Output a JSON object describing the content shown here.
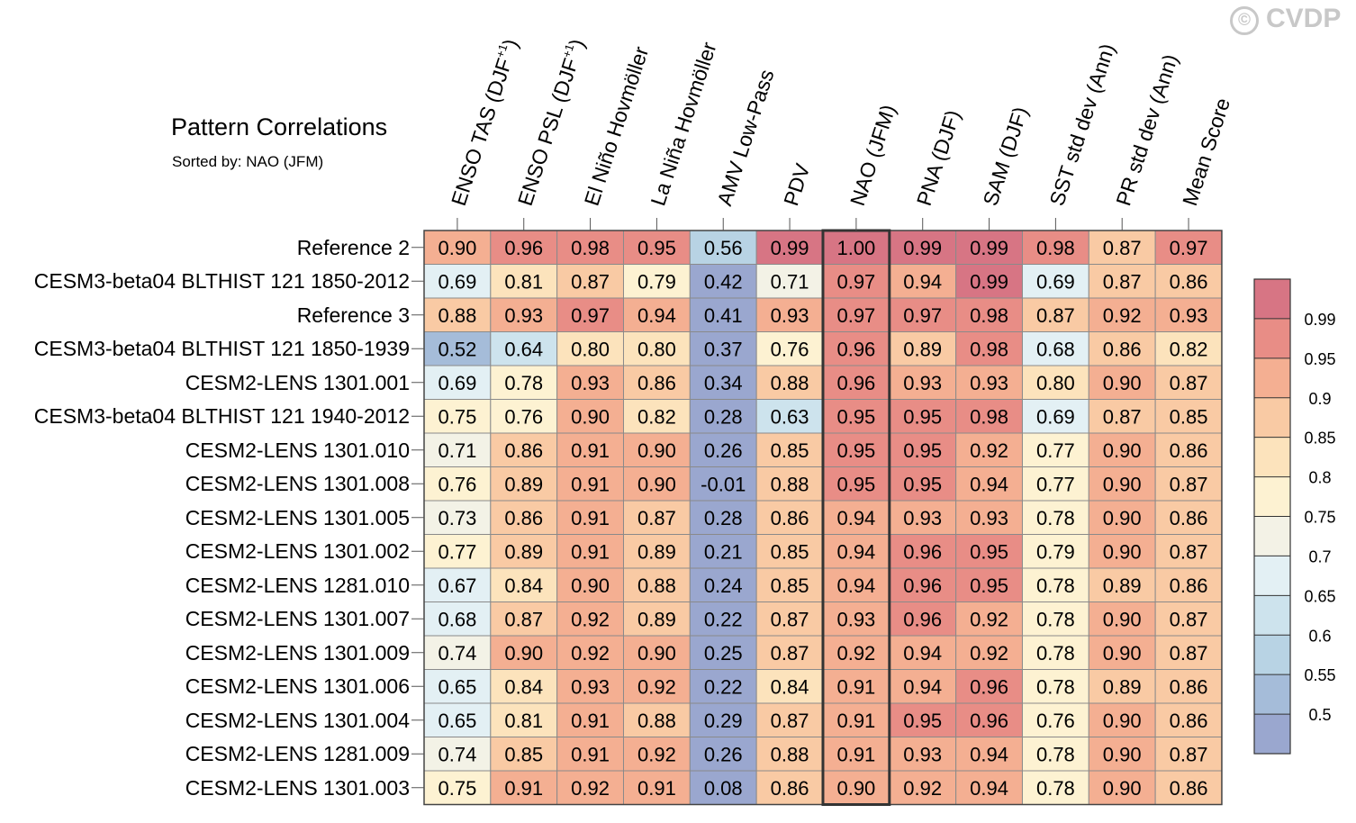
{
  "chart_data": {
    "type": "heatmap",
    "title": "Pattern Correlations",
    "subtitle": "Sorted by: NAO (JFM)",
    "watermark": "CVDP",
    "watermark_symbol": "©",
    "highlighted_column": "NAO (JFM)",
    "columns": [
      {
        "label": "ENSO TAS (DJF",
        "sup": "+1",
        "tail": ")"
      },
      {
        "label": "ENSO PSL (DJF",
        "sup": "+1",
        "tail": ")"
      },
      {
        "label": "El Niño Hovmöller",
        "sup": "",
        "tail": ""
      },
      {
        "label": "La Niña Hovmöller",
        "sup": "",
        "tail": ""
      },
      {
        "label": "AMV Low-Pass",
        "sup": "",
        "tail": ""
      },
      {
        "label": "PDV",
        "sup": "",
        "tail": ""
      },
      {
        "label": "NAO (JFM)",
        "sup": "",
        "tail": ""
      },
      {
        "label": "PNA (DJF)",
        "sup": "",
        "tail": ""
      },
      {
        "label": "SAM (DJF)",
        "sup": "",
        "tail": ""
      },
      {
        "label": "SST std dev (Ann)",
        "sup": "",
        "tail": ""
      },
      {
        "label": "PR std dev (Ann)",
        "sup": "",
        "tail": ""
      },
      {
        "label": "Mean Score",
        "sup": "",
        "tail": ""
      }
    ],
    "rows": [
      "Reference 2",
      "CESM3-beta04 BLTHIST 121 1850-2012",
      "Reference 3",
      "CESM3-beta04 BLTHIST 121 1850-1939",
      "CESM2-LENS 1301.001",
      "CESM3-beta04 BLTHIST 121 1940-2012",
      "CESM2-LENS 1301.010",
      "CESM2-LENS 1301.008",
      "CESM2-LENS 1301.005",
      "CESM2-LENS 1301.002",
      "CESM2-LENS 1281.010",
      "CESM2-LENS 1301.007",
      "CESM2-LENS 1301.009",
      "CESM2-LENS 1301.006",
      "CESM2-LENS 1301.004",
      "CESM2-LENS 1281.009",
      "CESM2-LENS 1301.003"
    ],
    "values": [
      [
        "0.90",
        "0.96",
        "0.98",
        "0.95",
        "0.56",
        "0.99",
        "1.00",
        "0.99",
        "0.99",
        "0.98",
        "0.87",
        "0.97"
      ],
      [
        "0.69",
        "0.81",
        "0.87",
        "0.79",
        "0.42",
        "0.71",
        "0.97",
        "0.94",
        "0.99",
        "0.69",
        "0.87",
        "0.86"
      ],
      [
        "0.88",
        "0.93",
        "0.97",
        "0.94",
        "0.41",
        "0.93",
        "0.97",
        "0.97",
        "0.98",
        "0.87",
        "0.92",
        "0.93"
      ],
      [
        "0.52",
        "0.64",
        "0.80",
        "0.80",
        "0.37",
        "0.76",
        "0.96",
        "0.89",
        "0.98",
        "0.68",
        "0.86",
        "0.82"
      ],
      [
        "0.69",
        "0.78",
        "0.93",
        "0.86",
        "0.34",
        "0.88",
        "0.96",
        "0.93",
        "0.93",
        "0.80",
        "0.90",
        "0.87"
      ],
      [
        "0.75",
        "0.76",
        "0.90",
        "0.82",
        "0.28",
        "0.63",
        "0.95",
        "0.95",
        "0.98",
        "0.69",
        "0.87",
        "0.85"
      ],
      [
        "0.71",
        "0.86",
        "0.91",
        "0.90",
        "0.26",
        "0.85",
        "0.95",
        "0.95",
        "0.92",
        "0.77",
        "0.90",
        "0.86"
      ],
      [
        "0.76",
        "0.89",
        "0.91",
        "0.90",
        "-0.01",
        "0.88",
        "0.95",
        "0.95",
        "0.94",
        "0.77",
        "0.90",
        "0.87"
      ],
      [
        "0.73",
        "0.86",
        "0.91",
        "0.87",
        "0.28",
        "0.86",
        "0.94",
        "0.93",
        "0.93",
        "0.78",
        "0.90",
        "0.86"
      ],
      [
        "0.77",
        "0.89",
        "0.91",
        "0.89",
        "0.21",
        "0.85",
        "0.94",
        "0.96",
        "0.95",
        "0.79",
        "0.90",
        "0.87"
      ],
      [
        "0.67",
        "0.84",
        "0.90",
        "0.88",
        "0.24",
        "0.85",
        "0.94",
        "0.96",
        "0.95",
        "0.78",
        "0.89",
        "0.86"
      ],
      [
        "0.68",
        "0.87",
        "0.92",
        "0.89",
        "0.22",
        "0.87",
        "0.93",
        "0.96",
        "0.92",
        "0.78",
        "0.90",
        "0.87"
      ],
      [
        "0.74",
        "0.90",
        "0.92",
        "0.90",
        "0.25",
        "0.87",
        "0.92",
        "0.94",
        "0.92",
        "0.78",
        "0.90",
        "0.87"
      ],
      [
        "0.65",
        "0.84",
        "0.93",
        "0.92",
        "0.22",
        "0.84",
        "0.91",
        "0.94",
        "0.96",
        "0.78",
        "0.89",
        "0.86"
      ],
      [
        "0.65",
        "0.81",
        "0.91",
        "0.88",
        "0.29",
        "0.87",
        "0.91",
        "0.95",
        "0.96",
        "0.76",
        "0.90",
        "0.86"
      ],
      [
        "0.74",
        "0.85",
        "0.91",
        "0.92",
        "0.26",
        "0.88",
        "0.91",
        "0.93",
        "0.94",
        "0.78",
        "0.90",
        "0.87"
      ],
      [
        "0.75",
        "0.91",
        "0.92",
        "0.91",
        "0.08",
        "0.86",
        "0.90",
        "0.92",
        "0.94",
        "0.78",
        "0.90",
        "0.86"
      ]
    ],
    "colorbar": {
      "labels": [
        "0.99",
        "0.95",
        "0.9",
        "0.85",
        "0.8",
        "0.75",
        "0.7",
        "0.65",
        "0.6",
        "0.55",
        "0.5"
      ],
      "thresholds": [
        0.5,
        0.55,
        0.6,
        0.65,
        0.7,
        0.75,
        0.8,
        0.85,
        0.9,
        0.95,
        0.99
      ],
      "colors": [
        "#9aa7cf",
        "#a5bcd9",
        "#b8d3e4",
        "#cde3ed",
        "#e3f0f4",
        "#f3f2e6",
        "#fdf2d2",
        "#fce3bc",
        "#f9caa4",
        "#f4af92",
        "#e88d86",
        "#d77584"
      ]
    },
    "xlabel": "",
    "ylabel": ""
  }
}
